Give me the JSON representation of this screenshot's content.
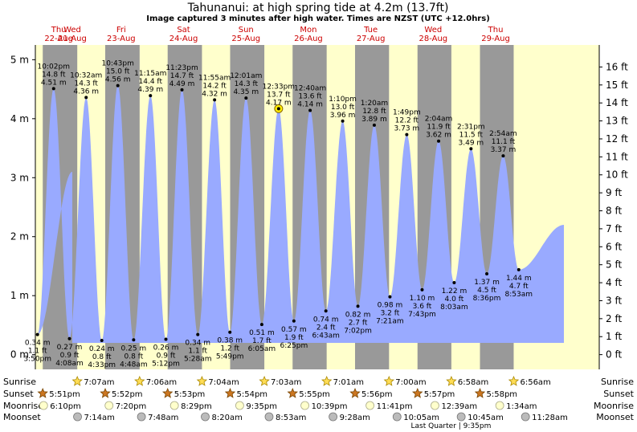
{
  "chart_data": {
    "type": "area",
    "title": "Tahunanui: at high  spring tide at 4.2m (13.7ft)",
    "subtitle": "Image captured 3 minutes after high water. Times are NZST (UTC +12.0hrs)",
    "y_left_unit": "m",
    "y_right_unit": "ft",
    "ylim_m": [
      -0.25,
      5.25
    ],
    "y_ticks_m": [
      "0 m",
      "1 m",
      "2 m",
      "3 m",
      "4 m",
      "5 m"
    ],
    "y_ticks_ft": [
      "0 ft",
      "1 ft",
      "2 ft",
      "3 ft",
      "4 ft",
      "5 ft",
      "6 ft",
      "7 ft",
      "8 ft",
      "9 ft",
      "10 ft",
      "11 ft",
      "12 ft",
      "13 ft",
      "14 ft",
      "15 ft",
      "16 ft"
    ],
    "days": [
      {
        "dow": "Wed",
        "date": "21-Aug"
      },
      {
        "dow": "Thu",
        "date": "22-Aug"
      },
      {
        "dow": "Fri",
        "date": "23-Aug"
      },
      {
        "dow": "Sat",
        "date": "24-Aug"
      },
      {
        "dow": "Sun",
        "date": "25-Aug"
      },
      {
        "dow": "Mon",
        "date": "26-Aug"
      },
      {
        "dow": "Tue",
        "date": "27-Aug"
      },
      {
        "dow": "Wed",
        "date": "28-Aug"
      },
      {
        "dow": "Thu",
        "date": "29-Aug"
      }
    ],
    "tides": [
      {
        "type": "low",
        "time": "3:50 pm",
        "m": 0.34,
        "ft": "1.1 ft",
        "m_label": "0.34 m",
        "day": 0,
        "hour": 15.83
      },
      {
        "type": "high",
        "time": "10:02 pm",
        "m": 4.51,
        "ft": "14.8 ft",
        "m_label": "4.51 m",
        "day": 0,
        "hour": 22.03
      },
      {
        "type": "low",
        "time": "4:08 am",
        "m": 0.27,
        "ft": "0.9 ft",
        "m_label": "0.27 m",
        "day": 1,
        "hour": 4.13
      },
      {
        "type": "high",
        "time": "10:32 am",
        "m": 4.36,
        "ft": "14.3 ft",
        "m_label": "4.36 m",
        "day": 1,
        "hour": 10.53
      },
      {
        "type": "low",
        "time": "4:33 pm",
        "m": 0.24,
        "ft": "0.8 ft",
        "m_label": "0.24 m",
        "day": 1,
        "hour": 16.55
      },
      {
        "type": "high",
        "time": "10:43 pm",
        "m": 4.56,
        "ft": "15.0 ft",
        "m_label": "4.56 m",
        "day": 1,
        "hour": 22.72
      },
      {
        "type": "low",
        "time": "4:48 am",
        "m": 0.25,
        "ft": "0.8 ft",
        "m_label": "0.25 m",
        "day": 2,
        "hour": 4.8
      },
      {
        "type": "high",
        "time": "11:15 am",
        "m": 4.39,
        "ft": "14.4 ft",
        "m_label": "4.39 m",
        "day": 2,
        "hour": 11.25
      },
      {
        "type": "low",
        "time": "5:12 pm",
        "m": 0.26,
        "ft": "0.9 ft",
        "m_label": "0.26 m",
        "day": 2,
        "hour": 17.2
      },
      {
        "type": "high",
        "time": "11:23 pm",
        "m": 4.49,
        "ft": "14.7 ft",
        "m_label": "4.49 m",
        "day": 2,
        "hour": 23.38
      },
      {
        "type": "low",
        "time": "5:28 am",
        "m": 0.34,
        "ft": "1.1 ft",
        "m_label": "0.34 m",
        "day": 3,
        "hour": 5.47
      },
      {
        "type": "high",
        "time": "11:55 am",
        "m": 4.32,
        "ft": "14.2 ft",
        "m_label": "4.32 m",
        "day": 3,
        "hour": 11.92
      },
      {
        "type": "low",
        "time": "5:49 pm",
        "m": 0.38,
        "ft": "1.2 ft",
        "m_label": "0.38 m",
        "day": 3,
        "hour": 17.82
      },
      {
        "type": "high",
        "time": "12:01 am",
        "m": 4.35,
        "ft": "14.3 ft",
        "m_label": "4.35 m",
        "day": 4,
        "hour": 0.02
      },
      {
        "type": "low",
        "time": "6:05 am",
        "m": 0.51,
        "ft": "1.7 ft",
        "m_label": "0.51 m",
        "day": 4,
        "hour": 6.08
      },
      {
        "type": "high",
        "time": "12:33 pm",
        "m": 4.17,
        "ft": "13.7 ft",
        "m_label": "4.17 m",
        "day": 4,
        "hour": 12.55,
        "current": true
      },
      {
        "type": "low",
        "time": "6:25 pm",
        "m": 0.57,
        "ft": "1.9 ft",
        "m_label": "0.57 m",
        "day": 4,
        "hour": 18.42
      },
      {
        "type": "high",
        "time": "12:40 am",
        "m": 4.14,
        "ft": "13.6 ft",
        "m_label": "4.14 m",
        "day": 5,
        "hour": 0.67
      },
      {
        "type": "low",
        "time": "6:43 am",
        "m": 0.74,
        "ft": "2.4 ft",
        "m_label": "0.74 m",
        "day": 5,
        "hour": 6.72
      },
      {
        "type": "high",
        "time": "1:10 pm",
        "m": 3.96,
        "ft": "13.0 ft",
        "m_label": "3.96 m",
        "day": 5,
        "hour": 13.17
      },
      {
        "type": "low",
        "time": "7:02 pm",
        "m": 0.82,
        "ft": "2.7 ft",
        "m_label": "0.82 m",
        "day": 5,
        "hour": 19.03
      },
      {
        "type": "high",
        "time": "1:20 am",
        "m": 3.89,
        "ft": "12.8 ft",
        "m_label": "3.89 m",
        "day": 6,
        "hour": 1.33
      },
      {
        "type": "low",
        "time": "7:21 am",
        "m": 0.98,
        "ft": "3.2 ft",
        "m_label": "0.98 m",
        "day": 6,
        "hour": 7.35
      },
      {
        "type": "high",
        "time": "1:49 pm",
        "m": 3.73,
        "ft": "12.2 ft",
        "m_label": "3.73 m",
        "day": 6,
        "hour": 13.82
      },
      {
        "type": "low",
        "time": "7:43 pm",
        "m": 1.1,
        "ft": "3.6 ft",
        "m_label": "1.10 m",
        "day": 6,
        "hour": 19.72
      },
      {
        "type": "high",
        "time": "2:04 am",
        "m": 3.62,
        "ft": "11.9 ft",
        "m_label": "3.62 m",
        "day": 7,
        "hour": 2.07
      },
      {
        "type": "low",
        "time": "8:03 am",
        "m": 1.22,
        "ft": "4.0 ft",
        "m_label": "1.22 m",
        "day": 7,
        "hour": 8.05
      },
      {
        "type": "high",
        "time": "2:31 pm",
        "m": 3.49,
        "ft": "11.5 ft",
        "m_label": "3.49 m",
        "day": 7,
        "hour": 14.52
      },
      {
        "type": "low",
        "time": "8:36 pm",
        "m": 1.37,
        "ft": "4.5 ft",
        "m_label": "1.37 m",
        "day": 7,
        "hour": 20.6
      },
      {
        "type": "high",
        "time": "2:54 am",
        "m": 3.37,
        "ft": "11.1 ft",
        "m_label": "3.37 m",
        "day": 8,
        "hour": 2.9
      },
      {
        "type": "low",
        "time": "8:53 am",
        "m": 1.44,
        "ft": "4.7 ft",
        "m_label": "1.44 m",
        "day": 8,
        "hour": 8.88
      }
    ],
    "start_level_m": 3.1,
    "end_level_m": 2.2,
    "sunrise": [
      {
        "day": 1,
        "hour": 7.12,
        "label": "7:07am"
      },
      {
        "day": 2,
        "hour": 7.1,
        "label": "7:06am"
      },
      {
        "day": 3,
        "hour": 7.07,
        "label": "7:04am"
      },
      {
        "day": 4,
        "hour": 7.05,
        "label": "7:03am"
      },
      {
        "day": 5,
        "hour": 7.02,
        "label": "7:01am"
      },
      {
        "day": 6,
        "hour": 7.0,
        "label": "7:00am"
      },
      {
        "day": 7,
        "hour": 6.97,
        "label": "6:58am"
      },
      {
        "day": 8,
        "hour": 6.93,
        "label": "6:56am"
      }
    ],
    "sunset": [
      {
        "day": 0,
        "hour": 17.85,
        "label": "5:51pm"
      },
      {
        "day": 1,
        "hour": 17.87,
        "label": "5:52pm"
      },
      {
        "day": 2,
        "hour": 17.88,
        "label": "5:53pm"
      },
      {
        "day": 3,
        "hour": 17.9,
        "label": "5:54pm"
      },
      {
        "day": 4,
        "hour": 17.92,
        "label": "5:55pm"
      },
      {
        "day": 5,
        "hour": 17.93,
        "label": "5:56pm"
      },
      {
        "day": 6,
        "hour": 17.95,
        "label": "5:57pm"
      },
      {
        "day": 7,
        "hour": 17.97,
        "label": "5:58pm"
      }
    ],
    "moonrise": [
      {
        "day": 0,
        "hour": 18.17,
        "label": "6:10pm"
      },
      {
        "day": 1,
        "hour": 19.33,
        "label": "7:20pm"
      },
      {
        "day": 2,
        "hour": 20.48,
        "label": "8:29pm"
      },
      {
        "day": 3,
        "hour": 21.58,
        "label": "9:35pm"
      },
      {
        "day": 4,
        "hour": 22.65,
        "label": "10:39pm"
      },
      {
        "day": 5,
        "hour": 23.68,
        "label": "11:41pm"
      },
      {
        "day": 7,
        "hour": 0.65,
        "label": "12:39am"
      },
      {
        "day": 8,
        "hour": 1.57,
        "label": "1:34am"
      }
    ],
    "moonset": [
      {
        "day": 1,
        "hour": 7.23,
        "label": "7:14am"
      },
      {
        "day": 2,
        "hour": 7.8,
        "label": "7:48am"
      },
      {
        "day": 3,
        "hour": 8.33,
        "label": "8:20am"
      },
      {
        "day": 4,
        "hour": 8.88,
        "label": "8:53am"
      },
      {
        "day": 5,
        "hour": 9.47,
        "label": "9:28am"
      },
      {
        "day": 6,
        "hour": 10.08,
        "label": "10:05am"
      },
      {
        "day": 7,
        "hour": 10.75,
        "label": "10:45am"
      },
      {
        "day": 8,
        "hour": 11.47,
        "label": "11:28am"
      }
    ],
    "row_labels": {
      "sunrise": "Sunrise",
      "sunset": "Sunset",
      "moonrise": "Moonrise",
      "moonset": "Moonset"
    },
    "moon_phase_note": "Last Quarter | 9:35pm",
    "colors": {
      "day_bg": "#ffffcc",
      "night_bg": "#999999",
      "water": "#99aaff",
      "title": "#000000",
      "date_label": "#cc0000",
      "sun_icon": "#ffdd55",
      "sunset_icon": "#cc7722",
      "moon_icon": "#ffffcc",
      "moonset_icon": "#bbbbbb"
    }
  }
}
